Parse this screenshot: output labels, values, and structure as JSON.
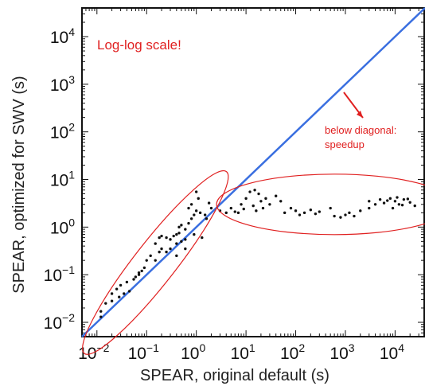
{
  "chart_data": {
    "type": "scatter",
    "scale": "log-log",
    "xlabel": "SPEAR, original default (s)",
    "ylabel": "SPEAR, optimized for SWV (s)",
    "xlim": [
      0.005,
      40000
    ],
    "ylim": [
      0.005,
      40000
    ],
    "x_ticks": [
      {
        "value": 0.01,
        "base": "10",
        "exp": "−2"
      },
      {
        "value": 0.1,
        "base": "10",
        "exp": "−1"
      },
      {
        "value": 1,
        "base": "10",
        "exp": "0"
      },
      {
        "value": 10,
        "base": "10",
        "exp": "1"
      },
      {
        "value": 100,
        "base": "10",
        "exp": "2"
      },
      {
        "value": 1000,
        "base": "10",
        "exp": "3"
      },
      {
        "value": 10000,
        "base": "10",
        "exp": "4"
      }
    ],
    "y_ticks": [
      {
        "value": 0.01,
        "base": "10",
        "exp": "−2"
      },
      {
        "value": 0.1,
        "base": "10",
        "exp": "−1"
      },
      {
        "value": 1,
        "base": "10",
        "exp": "0"
      },
      {
        "value": 10,
        "base": "10",
        "exp": "1"
      },
      {
        "value": 100,
        "base": "10",
        "exp": "2"
      },
      {
        "value": 1000,
        "base": "10",
        "exp": "3"
      },
      {
        "value": 10000,
        "base": "10",
        "exp": "4"
      }
    ],
    "points": [
      [
        0.012,
        0.013
      ],
      [
        0.012,
        0.017
      ],
      [
        0.015,
        0.025
      ],
      [
        0.02,
        0.028
      ],
      [
        0.028,
        0.034
      ],
      [
        0.035,
        0.04
      ],
      [
        0.02,
        0.04
      ],
      [
        0.025,
        0.05
      ],
      [
        0.03,
        0.06
      ],
      [
        0.045,
        0.045
      ],
      [
        0.04,
        0.07
      ],
      [
        0.055,
        0.08
      ],
      [
        0.06,
        0.09
      ],
      [
        0.07,
        0.11
      ],
      [
        0.08,
        0.12
      ],
      [
        0.09,
        0.14
      ],
      [
        0.07,
        0.1
      ],
      [
        0.1,
        0.2
      ],
      [
        0.12,
        0.25
      ],
      [
        0.15,
        0.2
      ],
      [
        0.18,
        0.3
      ],
      [
        0.2,
        0.35
      ],
      [
        0.15,
        0.45
      ],
      [
        0.18,
        0.6
      ],
      [
        0.2,
        0.65
      ],
      [
        0.25,
        0.6
      ],
      [
        0.3,
        0.55
      ],
      [
        0.35,
        0.65
      ],
      [
        0.4,
        0.7
      ],
      [
        0.45,
        0.75
      ],
      [
        0.25,
        0.3
      ],
      [
        0.3,
        0.35
      ],
      [
        0.4,
        0.45
      ],
      [
        0.5,
        0.5
      ],
      [
        0.6,
        0.55
      ],
      [
        0.45,
        1.0
      ],
      [
        0.5,
        1.1
      ],
      [
        0.6,
        0.9
      ],
      [
        0.7,
        1.2
      ],
      [
        0.8,
        1.5
      ],
      [
        0.9,
        1.8
      ],
      [
        1.0,
        2.2
      ],
      [
        1.2,
        2.0
      ],
      [
        0.7,
        2.5
      ],
      [
        0.8,
        3.0
      ],
      [
        1.0,
        5.5
      ],
      [
        1.1,
        4.0
      ],
      [
        1.5,
        1.8
      ],
      [
        2.0,
        2.5
      ],
      [
        1.8,
        3.2
      ],
      [
        1.3,
        0.6
      ],
      [
        0.9,
        0.7
      ],
      [
        0.6,
        0.35
      ],
      [
        0.4,
        0.25
      ],
      [
        1.6,
        1.5
      ],
      [
        3,
        2.2
      ],
      [
        4,
        2.0
      ],
      [
        5,
        2.5
      ],
      [
        6,
        2.1
      ],
      [
        8,
        3.0
      ],
      [
        10,
        4.0
      ],
      [
        12,
        5.5
      ],
      [
        15,
        6.0
      ],
      [
        18,
        5.0
      ],
      [
        20,
        3.5
      ],
      [
        22,
        2.5
      ],
      [
        25,
        4.0
      ],
      [
        30,
        3.0
      ],
      [
        40,
        4.5
      ],
      [
        50,
        3.5
      ],
      [
        7,
        2.0
      ],
      [
        9,
        2.4
      ],
      [
        14,
        2.8
      ],
      [
        16,
        2.2
      ],
      [
        60,
        2.0
      ],
      [
        80,
        2.5
      ],
      [
        100,
        2.2
      ],
      [
        120,
        1.8
      ],
      [
        150,
        2.0
      ],
      [
        200,
        2.3
      ],
      [
        250,
        1.9
      ],
      [
        300,
        2.1
      ],
      [
        500,
        2.5
      ],
      [
        600,
        1.7
      ],
      [
        800,
        1.6
      ],
      [
        1000,
        1.8
      ],
      [
        1200,
        2.0
      ],
      [
        1500,
        1.7
      ],
      [
        2000,
        2.2
      ],
      [
        3000,
        2.5
      ],
      [
        3000,
        3.5
      ],
      [
        4000,
        3.0
      ],
      [
        5000,
        3.8
      ],
      [
        6000,
        3.2
      ],
      [
        8000,
        4.0
      ],
      [
        10000,
        3.5
      ],
      [
        12000,
        3.0
      ],
      [
        15000,
        3.8
      ],
      [
        20000,
        3.3
      ],
      [
        25000,
        2.8
      ],
      [
        9000,
        2.5
      ],
      [
        7000,
        3.6
      ],
      [
        11000,
        4.2
      ],
      [
        14000,
        2.9
      ],
      [
        18000,
        3.9
      ]
    ],
    "diagonal_color": "#3a6fe0",
    "annotation_color": "#e02020",
    "annotations": {
      "title_note": "Log-log scale!",
      "diagonal_note_line1": "below diagonal:",
      "diagonal_note_line2": "speedup"
    }
  }
}
